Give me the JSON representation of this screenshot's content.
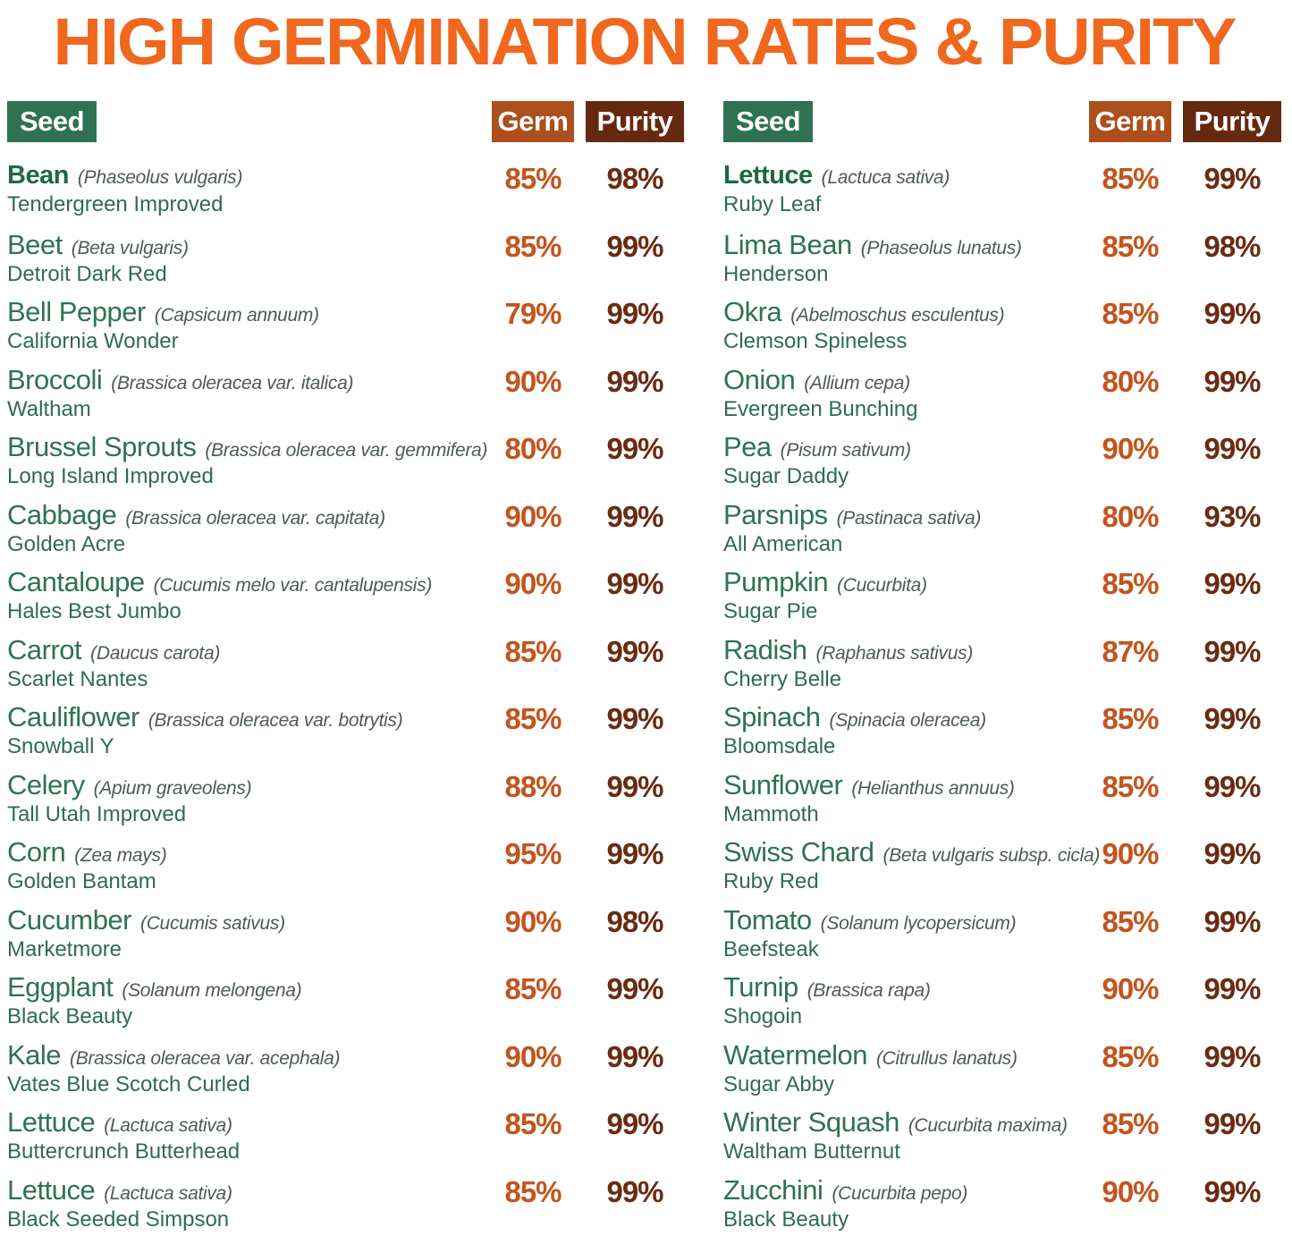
{
  "title": "HIGH GERMINATION RATES & PURITY",
  "colors": {
    "title_orange": "#F0671E",
    "seed_badge_green": "#2E7251",
    "germ_badge_orange": "#AC4E1D",
    "purity_badge_brown": "#66290F",
    "seed_name_green": "#2F7254",
    "seed_name_bold_green": "#1D6843",
    "scientific_name_gray": "#4E5A54",
    "variety_green": "#2F6B52",
    "germ_value_orange": "#C3541D",
    "purity_value_brown": "#6B2A12",
    "background": "#FFFFFF"
  },
  "headers": {
    "seed": "Seed",
    "germ": "Germ",
    "purity": "Purity"
  },
  "columns": [
    {
      "rows": [
        {
          "name": "Bean",
          "sci": "(Phaseolus vulgaris)",
          "variety": "Tendergreen Improved",
          "germ": "85%",
          "purity": "98%",
          "bold": true
        },
        {
          "name": "Beet",
          "sci": "(Beta vulgaris)",
          "variety": "Detroit Dark Red",
          "germ": "85%",
          "purity": "99%"
        },
        {
          "name": "Bell Pepper",
          "sci": "(Capsicum annuum)",
          "variety": "California Wonder",
          "germ": "79%",
          "purity": "99%"
        },
        {
          "name": "Broccoli",
          "sci": "(Brassica oleracea var. italica)",
          "variety": "Waltham",
          "germ": "90%",
          "purity": "99%"
        },
        {
          "name": "Brussel Sprouts",
          "sci": "(Brassica oleracea var. gemmifera)",
          "variety": "Long Island Improved",
          "germ": "80%",
          "purity": "99%"
        },
        {
          "name": "Cabbage",
          "sci": "(Brassica oleracea var. capitata)",
          "variety": "Golden Acre",
          "germ": "90%",
          "purity": "99%"
        },
        {
          "name": "Cantaloupe",
          "sci": "(Cucumis melo var. cantalupensis)",
          "variety": "Hales Best Jumbo",
          "germ": "90%",
          "purity": "99%"
        },
        {
          "name": "Carrot",
          "sci": "(Daucus carota)",
          "variety": "Scarlet Nantes",
          "germ": "85%",
          "purity": "99%"
        },
        {
          "name": "Cauliflower",
          "sci": "(Brassica oleracea var. botrytis)",
          "variety": "Snowball Y",
          "germ": "85%",
          "purity": "99%"
        },
        {
          "name": "Celery",
          "sci": "(Apium graveolens)",
          "variety": "Tall Utah Improved",
          "germ": "88%",
          "purity": "99%"
        },
        {
          "name": "Corn",
          "sci": "(Zea mays)",
          "variety": "Golden Bantam",
          "germ": "95%",
          "purity": "99%"
        },
        {
          "name": "Cucumber",
          "sci": "(Cucumis sativus)",
          "variety": "Marketmore",
          "germ": "90%",
          "purity": "98%"
        },
        {
          "name": "Eggplant",
          "sci": "(Solanum melongena)",
          "variety": "Black Beauty",
          "germ": "85%",
          "purity": "99%"
        },
        {
          "name": "Kale",
          "sci": "(Brassica oleracea var. acephala)",
          "variety": "Vates Blue Scotch Curled",
          "germ": "90%",
          "purity": "99%"
        },
        {
          "name": "Lettuce",
          "sci": "(Lactuca sativa)",
          "variety": "Buttercrunch Butterhead",
          "germ": "85%",
          "purity": "99%"
        },
        {
          "name": "Lettuce",
          "sci": "(Lactuca sativa)",
          "variety": "Black Seeded Simpson",
          "germ": "85%",
          "purity": "99%"
        }
      ]
    },
    {
      "rows": [
        {
          "name": "Lettuce",
          "sci": "(Lactuca sativa)",
          "variety": "Ruby Leaf",
          "germ": "85%",
          "purity": "99%",
          "bold": true
        },
        {
          "name": "Lima Bean",
          "sci": "(Phaseolus lunatus)",
          "variety": "Henderson",
          "germ": "85%",
          "purity": "98%"
        },
        {
          "name": "Okra",
          "sci": "(Abelmoschus esculentus)",
          "variety": "Clemson Spineless",
          "germ": "85%",
          "purity": "99%"
        },
        {
          "name": "Onion",
          "sci": "(Allium cepa)",
          "variety": "Evergreen Bunching",
          "germ": "80%",
          "purity": "99%"
        },
        {
          "name": "Pea",
          "sci": "(Pisum sativum)",
          "variety": "Sugar Daddy",
          "germ": "90%",
          "purity": "99%"
        },
        {
          "name": "Parsnips",
          "sci": "(Pastinaca sativa)",
          "variety": "All American",
          "germ": "80%",
          "purity": "93%"
        },
        {
          "name": "Pumpkin",
          "sci": "(Cucurbita)",
          "variety": "Sugar Pie",
          "germ": "85%",
          "purity": "99%"
        },
        {
          "name": "Radish",
          "sci": "(Raphanus sativus)",
          "variety": "Cherry Belle",
          "germ": "87%",
          "purity": "99%"
        },
        {
          "name": "Spinach",
          "sci": "(Spinacia oleracea)",
          "variety": "Bloomsdale",
          "germ": "85%",
          "purity": "99%"
        },
        {
          "name": "Sunflower",
          "sci": "(Helianthus annuus)",
          "variety": "Mammoth",
          "germ": "85%",
          "purity": "99%"
        },
        {
          "name": "Swiss Chard",
          "sci": "(Beta vulgaris subsp. cicla)",
          "variety": "Ruby Red",
          "germ": "90%",
          "purity": "99%"
        },
        {
          "name": "Tomato",
          "sci": "(Solanum lycopersicum)",
          "variety": "Beefsteak",
          "germ": "85%",
          "purity": "99%"
        },
        {
          "name": "Turnip",
          "sci": "(Brassica rapa)",
          "variety": "Shogoin",
          "germ": "90%",
          "purity": "99%"
        },
        {
          "name": "Watermelon",
          "sci": "(Citrullus lanatus)",
          "variety": "Sugar Abby",
          "germ": "85%",
          "purity": "99%"
        },
        {
          "name": "Winter Squash",
          "sci": "(Cucurbita maxima)",
          "variety": "Waltham Butternut",
          "germ": "85%",
          "purity": "99%"
        },
        {
          "name": "Zucchini",
          "sci": "(Cucurbita pepo)",
          "variety": "Black Beauty",
          "germ": "90%",
          "purity": "99%"
        }
      ]
    }
  ]
}
